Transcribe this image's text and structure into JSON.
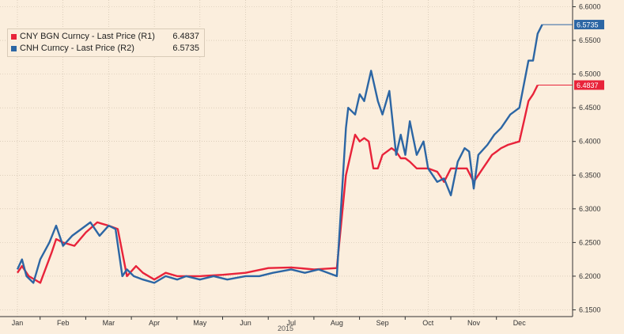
{
  "chart_data": {
    "type": "line",
    "x_tick_labels": [
      "Jan",
      "Feb",
      "Mar",
      "Apr",
      "May",
      "Jun",
      "Jul",
      "Aug",
      "Sep",
      "Oct",
      "Nov",
      "Dec"
    ],
    "x_year_label": "2015",
    "y_axis": {
      "position": "right",
      "ylim": [
        6.14,
        6.61
      ],
      "ticks": [
        "6.1500",
        "6.2000",
        "6.2500",
        "6.3000",
        "6.3500",
        "6.4000",
        "6.4500",
        "6.5000",
        "6.5500",
        "6.6000"
      ]
    },
    "grid": true,
    "legend_position": "top-left",
    "series": [
      {
        "name": "CNY BGN Curncy - Last Price (R1)",
        "last_value": "6.4837",
        "color": "#e8233a",
        "x": [
          0,
          0.1,
          0.25,
          0.5,
          0.75,
          0.85,
          1,
          1.25,
          1.5,
          1.75,
          2,
          2.2,
          2.4,
          2.6,
          2.75,
          3,
          3.25,
          3.5,
          4,
          4.5,
          5,
          5.5,
          6,
          6.5,
          7,
          7.2,
          7.4,
          7.5,
          7.6,
          7.7,
          7.8,
          7.9,
          8,
          8.2,
          8.3,
          8.4,
          8.5,
          8.6,
          8.75,
          9,
          9.2,
          9.35,
          9.5,
          9.7,
          9.85,
          10,
          10.2,
          10.3,
          10.4,
          10.5,
          10.6,
          10.75,
          11,
          11.1,
          11.2,
          11.3,
          11.4
        ],
        "y": [
          6.205,
          6.215,
          6.2,
          6.19,
          6.235,
          6.255,
          6.25,
          6.245,
          6.265,
          6.28,
          6.275,
          6.27,
          6.2,
          6.215,
          6.205,
          6.195,
          6.205,
          6.2,
          6.2,
          6.202,
          6.205,
          6.212,
          6.213,
          6.21,
          6.212,
          6.35,
          6.41,
          6.4,
          6.405,
          6.4,
          6.36,
          6.36,
          6.38,
          6.39,
          6.385,
          6.375,
          6.375,
          6.37,
          6.36,
          6.36,
          6.355,
          6.34,
          6.36,
          6.36,
          6.36,
          6.34,
          6.36,
          6.37,
          6.38,
          6.385,
          6.39,
          6.395,
          6.4,
          6.43,
          6.46,
          6.47,
          6.4837
        ]
      },
      {
        "name": "CNH Curncy - Last Price (R2)",
        "last_value": "6.5735",
        "color": "#2c66a4",
        "x": [
          0,
          0.1,
          0.2,
          0.35,
          0.5,
          0.7,
          0.85,
          1,
          1.2,
          1.4,
          1.6,
          1.8,
          2,
          2.15,
          2.3,
          2.4,
          2.55,
          2.75,
          3,
          3.25,
          3.5,
          3.7,
          4,
          4.3,
          4.6,
          5,
          5.3,
          5.6,
          6,
          6.3,
          6.6,
          7,
          7.2,
          7.25,
          7.4,
          7.5,
          7.6,
          7.75,
          7.9,
          8,
          8.15,
          8.3,
          8.4,
          8.5,
          8.6,
          8.75,
          8.9,
          9,
          9.2,
          9.35,
          9.5,
          9.65,
          9.8,
          9.9,
          10,
          10.1,
          10.3,
          10.45,
          10.6,
          10.8,
          11,
          11.2,
          11.3,
          11.4,
          11.5
        ],
        "y": [
          6.21,
          6.225,
          6.2,
          6.19,
          6.225,
          6.25,
          6.275,
          6.245,
          6.26,
          6.27,
          6.28,
          6.26,
          6.275,
          6.27,
          6.2,
          6.21,
          6.2,
          6.195,
          6.19,
          6.2,
          6.195,
          6.2,
          6.195,
          6.2,
          6.195,
          6.2,
          6.2,
          6.205,
          6.21,
          6.205,
          6.21,
          6.2,
          6.42,
          6.45,
          6.44,
          6.47,
          6.46,
          6.505,
          6.46,
          6.44,
          6.475,
          6.38,
          6.41,
          6.38,
          6.43,
          6.38,
          6.4,
          6.36,
          6.34,
          6.345,
          6.32,
          6.37,
          6.39,
          6.385,
          6.33,
          6.38,
          6.395,
          6.41,
          6.42,
          6.44,
          6.45,
          6.52,
          6.52,
          6.56,
          6.5735
        ]
      }
    ]
  }
}
